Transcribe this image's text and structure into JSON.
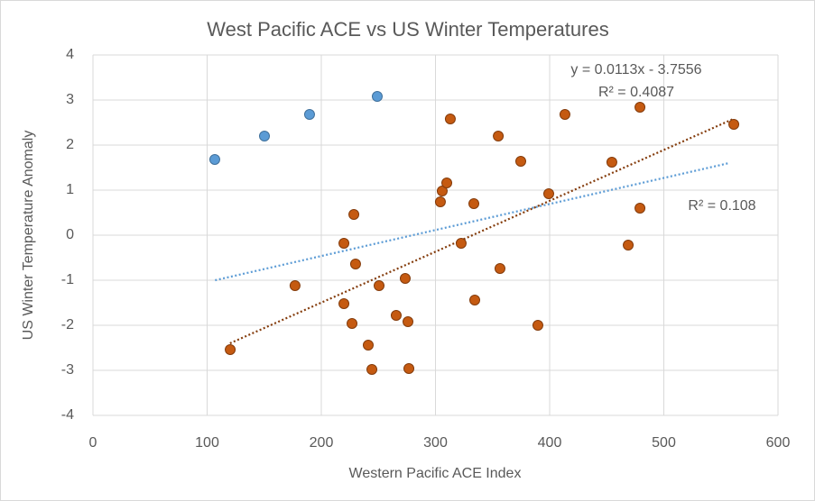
{
  "chart_data": {
    "type": "scatter",
    "title": "West Pacific ACE vs US Winter Temperatures",
    "x_label": "Western Pacific ACE Index",
    "y_label": "US Winter Temperature Anomaly",
    "xlim": [
      0,
      600
    ],
    "xticks": [
      0,
      100,
      200,
      300,
      400,
      500,
      600
    ],
    "ylim": [
      -4,
      4
    ],
    "yticks": [
      -4,
      -3,
      -2,
      -1,
      0,
      1,
      2,
      3,
      4
    ],
    "grid": true,
    "series": [
      {
        "color": "#5b9bd5",
        "edgecolor": "#41719c",
        "x": [
          106.7,
          150.2,
          189.7,
          249
        ],
        "values": [
          1.68,
          2.2,
          2.68,
          3.08
        ]
      },
      {
        "color": "#c55a11",
        "edgecolor": "#843c0c",
        "x": [
          120.2,
          177,
          219.8,
          219.8,
          228.5,
          230,
          226.9,
          241.1,
          244.3,
          250.6,
          265.6,
          273.5,
          275.9,
          276.7,
          304.3,
          305.9,
          309.9,
          313,
          322.5,
          333.6,
          334.4,
          355,
          356.5,
          374.7,
          389.7,
          399.2,
          413.4,
          454.5,
          468.8,
          479.1,
          479.1,
          561.3
        ],
        "values": [
          -2.54,
          -1.12,
          -0.18,
          -1.52,
          0.46,
          -0.64,
          -1.96,
          -2.44,
          -2.98,
          -1.12,
          -1.78,
          -0.96,
          -1.92,
          -2.96,
          0.74,
          0.98,
          1.16,
          2.58,
          -0.18,
          0.7,
          -1.44,
          2.2,
          -0.74,
          1.64,
          -2.0,
          0.92,
          2.68,
          1.62,
          -0.22,
          2.84,
          0.6,
          2.46
        ]
      }
    ],
    "trendlines": [
      {
        "color": "#5b9bd5",
        "x": [
          107,
          557
        ],
        "values": [
          -1.0,
          1.6
        ]
      },
      {
        "color": "#843c0c",
        "x": [
          120,
          560
        ],
        "values": [
          -2.4,
          2.57
        ]
      }
    ],
    "annotations": [
      "y = 0.0113x - 3.7556",
      "R² = 0.4087",
      "R² = 0.108"
    ]
  }
}
